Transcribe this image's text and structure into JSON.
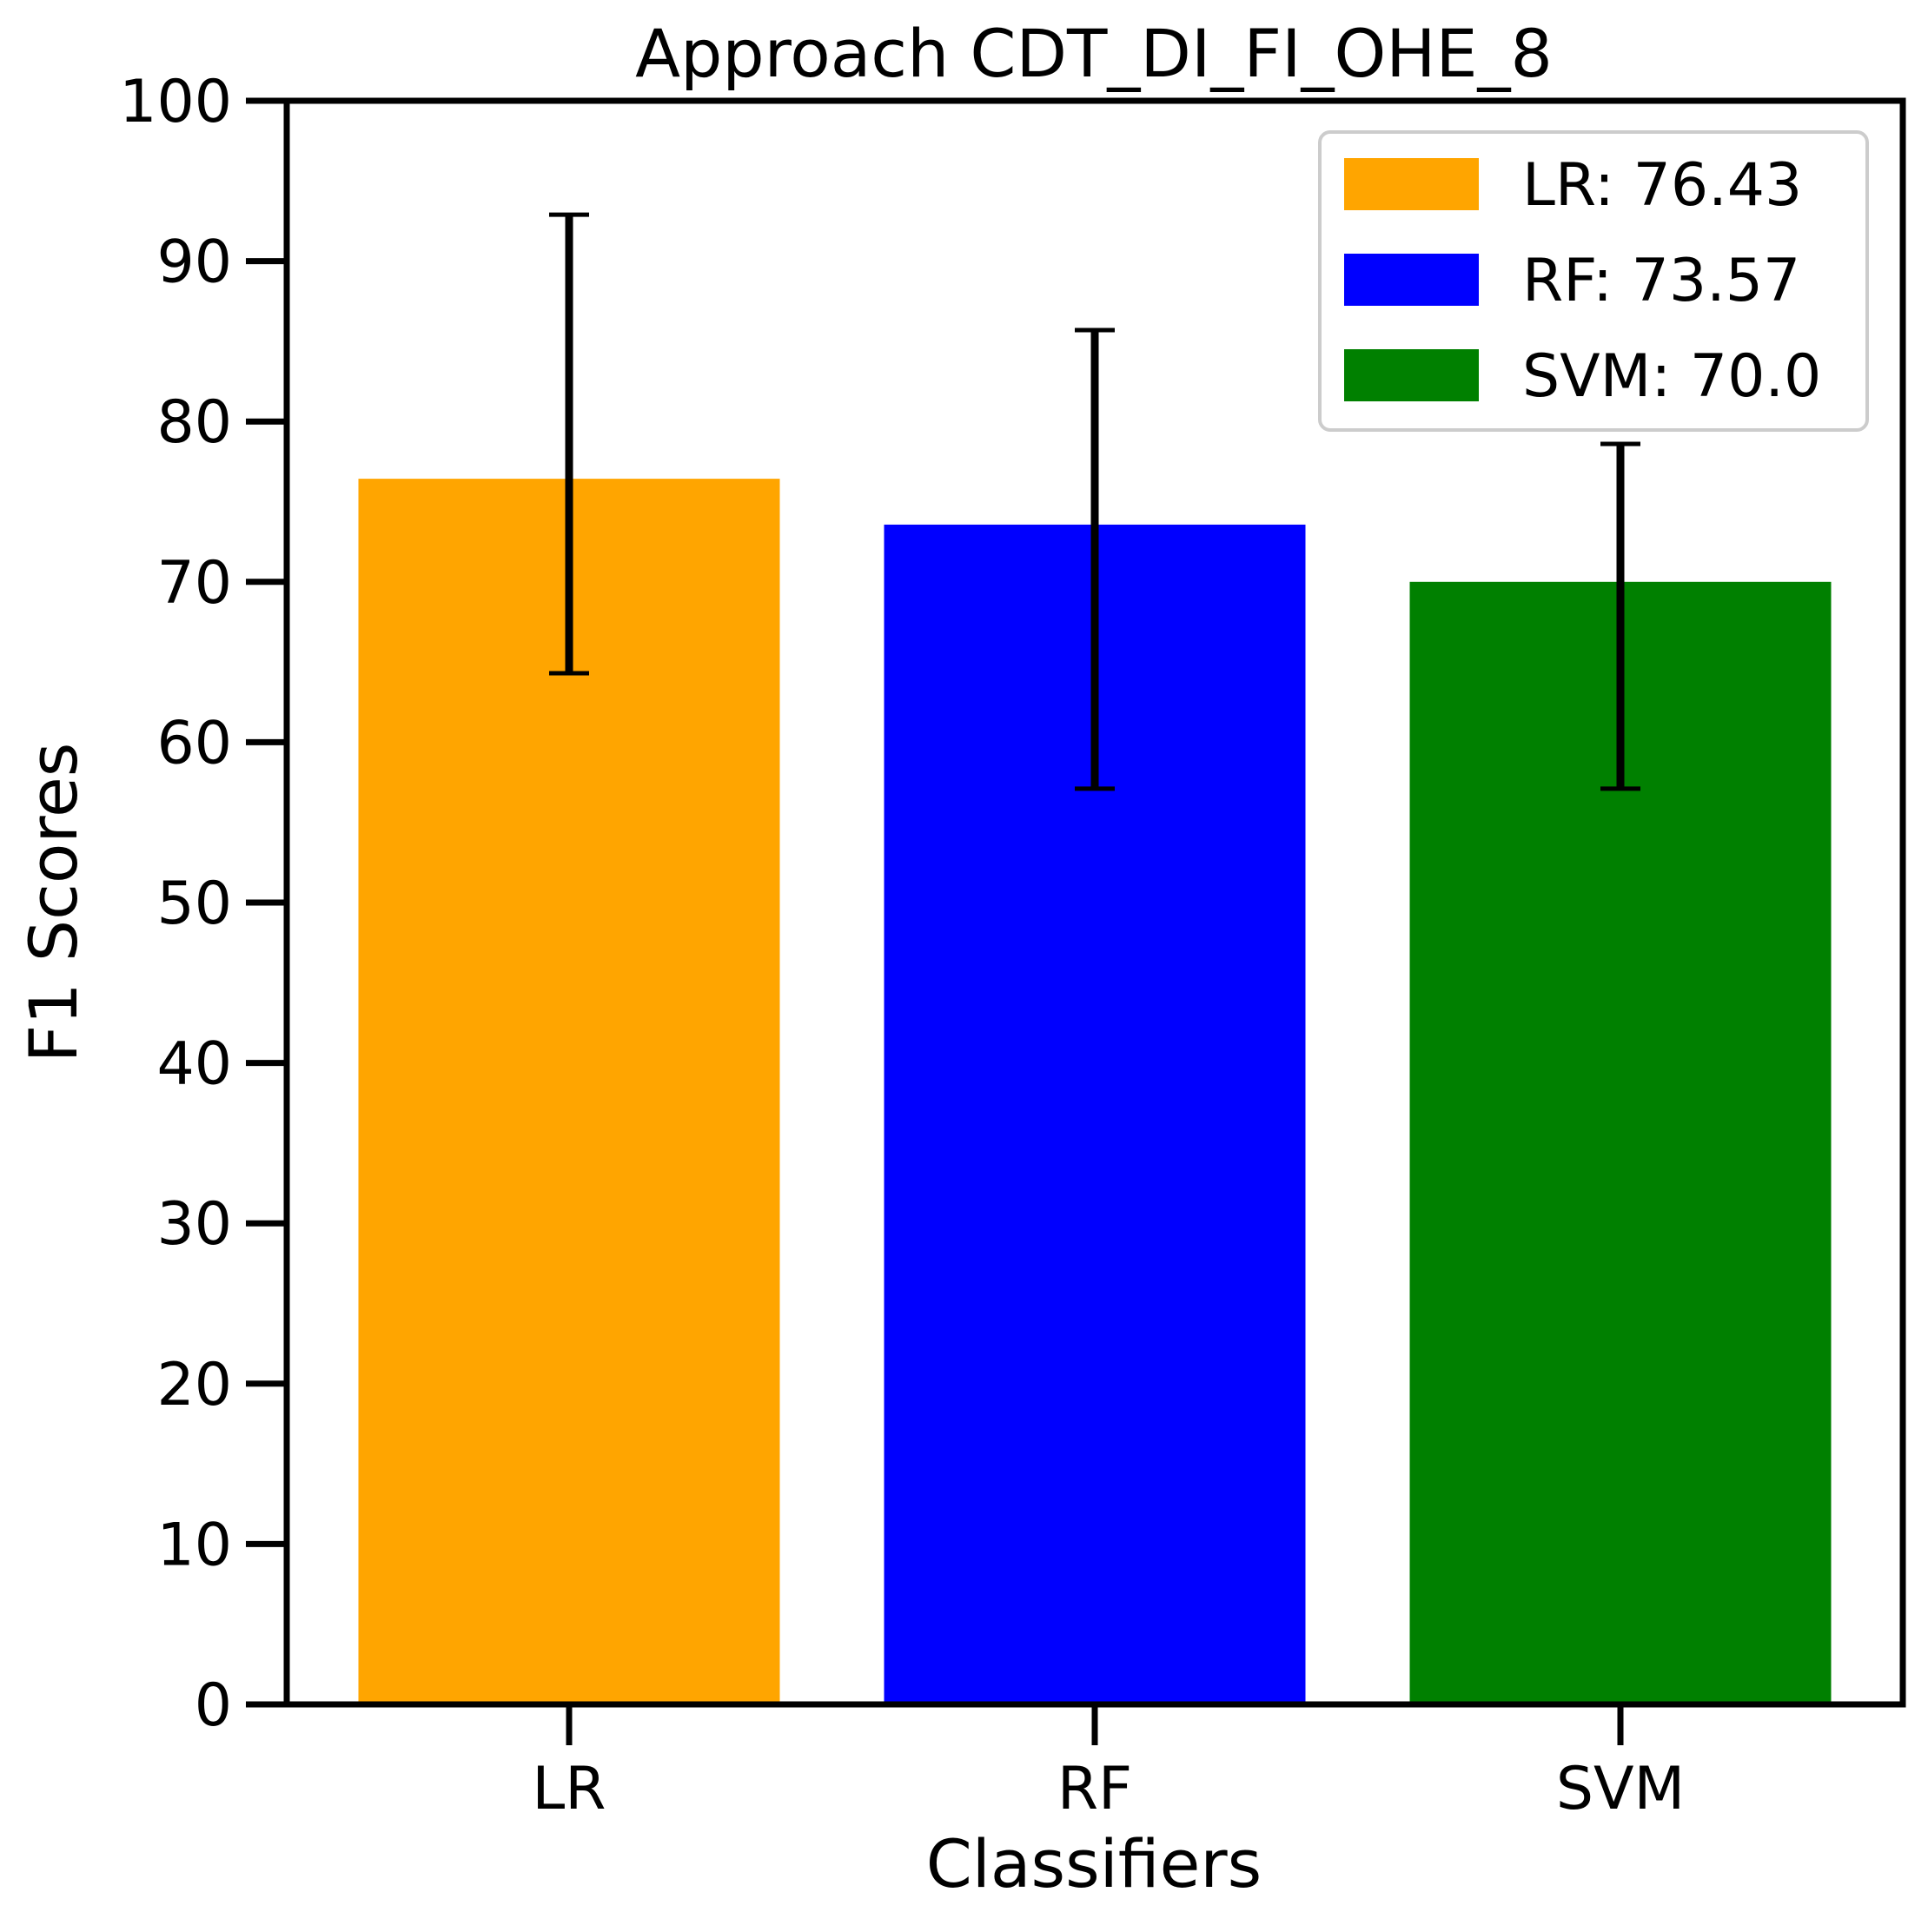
{
  "chart_data": {
    "type": "bar",
    "title": "Approach CDT_DI_FI_OHE_8",
    "xlabel": "Classifiers",
    "ylabel": "F1 Scores",
    "categories": [
      "LR",
      "RF",
      "SVM"
    ],
    "values": [
      76.43,
      73.57,
      70.0
    ],
    "error_low": [
      64.3,
      57.1,
      57.1
    ],
    "error_high": [
      92.9,
      85.7,
      78.6
    ],
    "colors": [
      "#FFA500",
      "#0000FF",
      "#008000"
    ],
    "ylim": [
      0,
      100
    ],
    "yticks": [
      0,
      10,
      20,
      30,
      40,
      50,
      60,
      70,
      80,
      90,
      100
    ],
    "grid": false,
    "legend_position": "top-right",
    "legend": [
      "LR: 76.43",
      "RF: 73.57",
      "SVM: 70.0"
    ]
  }
}
